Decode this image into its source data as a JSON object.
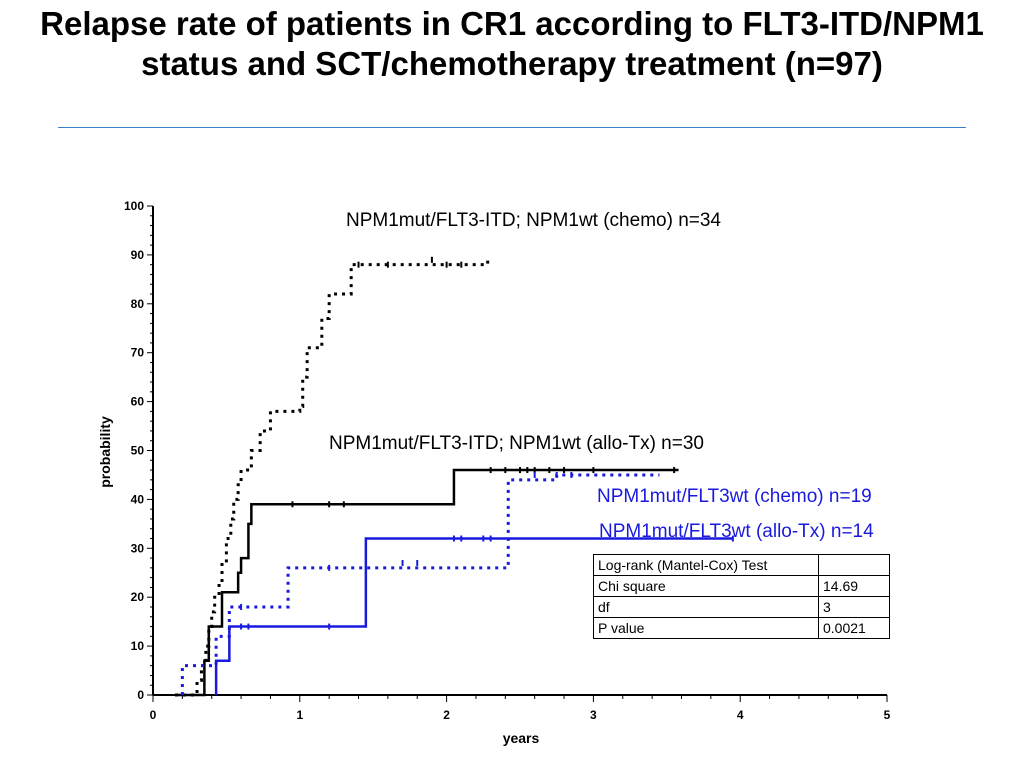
{
  "title": "Relapse rate of patients in CR1 according to FLT3-ITD/NPM1 status and SCT/chemotherapy treatment (n=97)",
  "colors": {
    "black": "#000000",
    "blue": "#1a1adf",
    "rule": "#3b7fc4"
  },
  "chart_data": {
    "type": "line",
    "subtype": "kaplan-meier step curves",
    "xlabel": "years",
    "ylabel": "probability",
    "xlim": [
      0,
      5
    ],
    "ylim": [
      0,
      100
    ],
    "xticks": [
      0,
      1,
      2,
      3,
      4,
      5
    ],
    "yticks": [
      0,
      10,
      20,
      30,
      40,
      50,
      60,
      70,
      80,
      90,
      100
    ],
    "grid": false,
    "series": [
      {
        "name": "NPM1mut/FLT3-ITD; NPM1wt (chemo) n=34",
        "color": "#000000",
        "dash": "dotted",
        "steps": [
          [
            0.15,
            0
          ],
          [
            0.3,
            3
          ],
          [
            0.33,
            6
          ],
          [
            0.36,
            10
          ],
          [
            0.38,
            14
          ],
          [
            0.4,
            17
          ],
          [
            0.42,
            20
          ],
          [
            0.45,
            23
          ],
          [
            0.47,
            27
          ],
          [
            0.5,
            32
          ],
          [
            0.53,
            36
          ],
          [
            0.55,
            40
          ],
          [
            0.58,
            43
          ],
          [
            0.6,
            46
          ],
          [
            0.67,
            50
          ],
          [
            0.73,
            54
          ],
          [
            0.8,
            58
          ],
          [
            1.0,
            59
          ],
          [
            1.02,
            65
          ],
          [
            1.05,
            71
          ],
          [
            1.15,
            77
          ],
          [
            1.2,
            82
          ],
          [
            1.35,
            88
          ],
          [
            2.28,
            89
          ]
        ],
        "censors": [
          [
            1.4,
            88
          ],
          [
            1.6,
            88
          ],
          [
            1.9,
            89
          ],
          [
            2.0,
            88
          ],
          [
            2.1,
            88
          ]
        ]
      },
      {
        "name": "NPM1mut/FLT3-ITD; NPM1wt (allo-Tx) n=30",
        "color": "#000000",
        "dash": "solid",
        "steps": [
          [
            0.15,
            0
          ],
          [
            0.33,
            0
          ],
          [
            0.35,
            7
          ],
          [
            0.38,
            14
          ],
          [
            0.47,
            21
          ],
          [
            0.58,
            25
          ],
          [
            0.6,
            28
          ],
          [
            0.65,
            35
          ],
          [
            0.67,
            39
          ],
          [
            2.05,
            39
          ],
          [
            2.05,
            46
          ],
          [
            3.58,
            46
          ]
        ],
        "censors": [
          [
            0.95,
            39
          ],
          [
            1.2,
            39
          ],
          [
            1.3,
            39
          ],
          [
            2.3,
            46
          ],
          [
            2.4,
            46
          ],
          [
            2.5,
            46
          ],
          [
            2.55,
            46
          ],
          [
            2.6,
            46
          ],
          [
            2.7,
            46
          ],
          [
            2.8,
            46
          ],
          [
            3.0,
            46
          ],
          [
            3.55,
            46
          ]
        ]
      },
      {
        "name": "NPM1mut/FLT3wt (chemo) n=19",
        "color": "#1a1adf",
        "dash": "dotted",
        "steps": [
          [
            0.2,
            0
          ],
          [
            0.2,
            6
          ],
          [
            0.35,
            6
          ],
          [
            0.43,
            12
          ],
          [
            0.52,
            18
          ],
          [
            0.92,
            18
          ],
          [
            0.92,
            26
          ],
          [
            2.42,
            26
          ],
          [
            2.42,
            44
          ],
          [
            2.75,
            45
          ],
          [
            3.45,
            45
          ]
        ],
        "censors": [
          [
            0.6,
            18
          ],
          [
            1.2,
            26
          ],
          [
            1.7,
            27
          ],
          [
            1.8,
            27
          ],
          [
            2.6,
            45
          ],
          [
            2.75,
            45
          ],
          [
            2.85,
            45
          ]
        ]
      },
      {
        "name": "NPM1mut/FLT3wt (allo-Tx) n=14",
        "color": "#1a1adf",
        "dash": "solid",
        "steps": [
          [
            0.43,
            0
          ],
          [
            0.43,
            7
          ],
          [
            0.52,
            7
          ],
          [
            0.52,
            14
          ],
          [
            1.45,
            14
          ],
          [
            1.45,
            32
          ],
          [
            3.95,
            32
          ]
        ],
        "censors": [
          [
            0.6,
            14
          ],
          [
            0.65,
            14
          ],
          [
            1.2,
            14
          ],
          [
            2.05,
            32
          ],
          [
            2.1,
            32
          ],
          [
            2.25,
            32
          ],
          [
            2.3,
            32
          ],
          [
            3.95,
            32
          ]
        ]
      }
    ]
  },
  "series_labels": [
    "NPM1mut/FLT3-ITD; NPM1wt (chemo) n=34",
    "NPM1mut/FLT3-ITD; NPM1wt (allo-Tx) n=30",
    "NPM1mut/FLT3wt (chemo) n=19",
    "NPM1mut/FLT3wt (allo-Tx) n=14"
  ],
  "stats_table": {
    "rows": [
      [
        "Log-rank (Mantel-Cox) Test",
        ""
      ],
      [
        "Chi square",
        "14.69"
      ],
      [
        "df",
        "3"
      ],
      [
        "P value",
        "0.0021"
      ]
    ]
  }
}
